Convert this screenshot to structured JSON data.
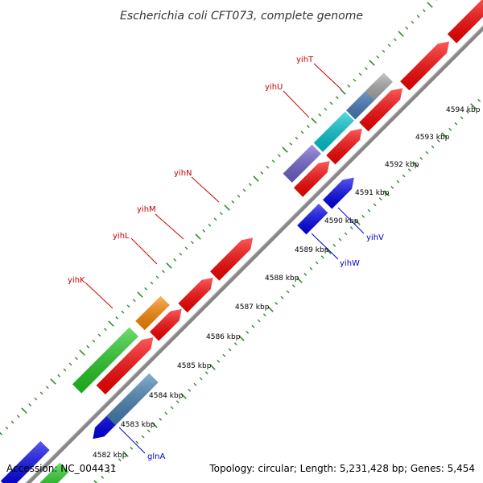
{
  "title": "Escherichia coli CFT073, complete genome",
  "footer": {
    "accession": "Accession: NC_004431",
    "summary": "Topology: circular; Length: 5,231,428 bp; Genes: 5,454"
  },
  "colors": {
    "backbone": "#888888",
    "tick_dotted": "#2e8b2e",
    "label_top": "#cc0000",
    "label_bottom": "#0000cc"
  },
  "scale_labels": [
    "4582 kbp",
    "4583 kbp",
    "4584 kbp",
    "4585 kbp",
    "4586 kbp",
    "4587 kbp",
    "4588 kbp",
    "4589 kbp",
    "4590 kbp",
    "4591 kbp",
    "4592 kbp",
    "4593 kbp",
    "4594 kbp"
  ],
  "gene_labels_top": [
    "yihK",
    "yihL",
    "yihM",
    "yihN",
    "yihU",
    "yihT"
  ],
  "gene_labels_bottom": [
    "yihW",
    "yihV",
    "glnA"
  ],
  "features": [
    {
      "color": "#ff0000"
    },
    {
      "color": "#ff0000"
    },
    {
      "color": "#ff0000"
    },
    {
      "color": "#ff0000"
    },
    {
      "color": "#ff0000"
    },
    {
      "color": "#ff0000"
    },
    {
      "color": "#ff0000"
    },
    {
      "color": "#ff0000"
    },
    {
      "color": "#ff0000"
    },
    {
      "color": "#22cc22"
    },
    {
      "color": "#ff8800"
    },
    {
      "color": "#7060d0"
    },
    {
      "color": "#00c8d0"
    },
    {
      "color": "#4a7fc0"
    },
    {
      "color": "#aaaaaa"
    },
    {
      "color": "#0000ee"
    },
    {
      "color": "#0000ee"
    },
    {
      "color": "#0000ee"
    },
    {
      "color": "#4682b4"
    },
    {
      "color": "#22cc22"
    },
    {
      "color": "#0000ee"
    }
  ]
}
